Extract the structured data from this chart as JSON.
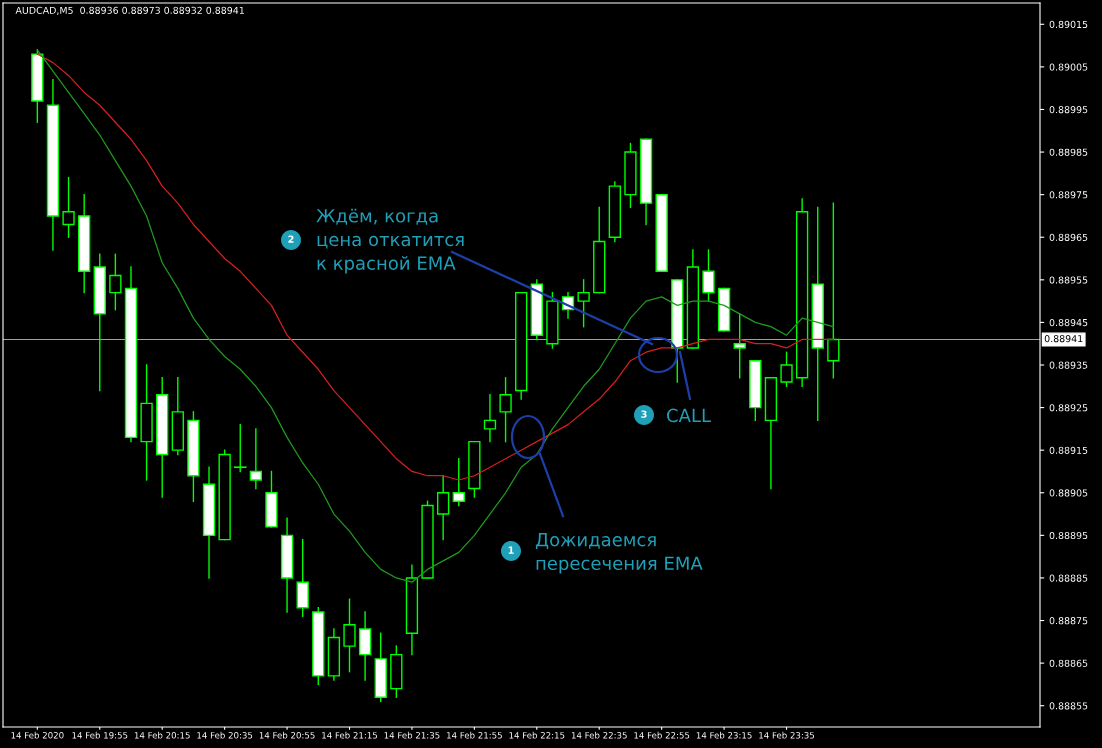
{
  "chart_data": {
    "type": "candlestick",
    "title": "AUDCAD,M5  0.88936 0.88973 0.88932 0.88941",
    "color": "#00ff00",
    "categories": [
      "14 Feb 2020",
      null,
      null,
      null,
      "14 Feb 19:55",
      null,
      null,
      null,
      "14 Feb 20:15",
      null,
      null,
      null,
      "14 Feb 20:35",
      null,
      null,
      null,
      "14 Feb 20:55",
      null,
      null,
      null,
      "14 Feb 21:15",
      null,
      null,
      null,
      "14 Feb 21:35",
      null,
      null,
      null,
      "14 Feb 21:55",
      null,
      null,
      null,
      "14 Feb 22:15",
      null,
      null,
      null,
      "14 Feb 22:35",
      null,
      null,
      null,
      "14 Feb 22:55",
      null,
      null,
      null,
      "14 Feb 23:15",
      null,
      null,
      null,
      "14 Feb 23:35",
      null,
      null,
      null
    ],
    "ohlc": [
      [
        0.89008,
        0.89009,
        0.88992,
        0.88997
      ],
      [
        0.88996,
        0.89002,
        0.88962,
        0.8897
      ],
      [
        0.88968,
        0.88979,
        0.88965,
        0.88971
      ],
      [
        0.8897,
        0.88975,
        0.88952,
        0.88957
      ],
      [
        0.88958,
        0.88961,
        0.88929,
        0.88947
      ],
      [
        0.88952,
        0.88961,
        0.88948,
        0.88956
      ],
      [
        0.88953,
        0.88958,
        0.88917,
        0.88918
      ],
      [
        0.88917,
        0.88935,
        0.88908,
        0.88926
      ],
      [
        0.88928,
        0.88932,
        0.88904,
        0.88914
      ],
      [
        0.88915,
        0.88932,
        0.88914,
        0.88924
      ],
      [
        0.88922,
        0.88924,
        0.88903,
        0.88909
      ],
      [
        0.88907,
        0.88911,
        0.88885,
        0.88895
      ],
      [
        0.88894,
        0.88915,
        0.88894,
        0.88914
      ],
      [
        0.88911,
        0.88921,
        0.8891,
        0.88911
      ],
      [
        0.8891,
        0.8892,
        0.88906,
        0.88908
      ],
      [
        0.88905,
        0.8891,
        0.88897,
        0.88897
      ],
      [
        0.88895,
        0.88899,
        0.88877,
        0.88885
      ],
      [
        0.88884,
        0.88894,
        0.88876,
        0.88878
      ],
      [
        0.88877,
        0.88878,
        0.8886,
        0.88862
      ],
      [
        0.88862,
        0.88873,
        0.88861,
        0.88871
      ],
      [
        0.88869,
        0.8888,
        0.88863,
        0.88874
      ],
      [
        0.88873,
        0.88877,
        0.88861,
        0.88867
      ],
      [
        0.88866,
        0.88872,
        0.88856,
        0.88857
      ],
      [
        0.88859,
        0.88869,
        0.88857,
        0.88867
      ],
      [
        0.88872,
        0.88888,
        0.88867,
        0.88885
      ],
      [
        0.88885,
        0.88903,
        0.88885,
        0.88902
      ],
      [
        0.889,
        0.88909,
        0.88894,
        0.88905
      ],
      [
        0.88905,
        0.88913,
        0.88902,
        0.88903
      ],
      [
        0.88906,
        0.88917,
        0.88904,
        0.88917
      ],
      [
        0.8892,
        0.88928,
        0.88917,
        0.88922
      ],
      [
        0.88924,
        0.88932,
        0.88917,
        0.88928
      ],
      [
        0.88929,
        0.88952,
        0.88927,
        0.88952
      ],
      [
        0.88954,
        0.88955,
        0.88941,
        0.88942
      ],
      [
        0.8894,
        0.88952,
        0.88939,
        0.8895
      ],
      [
        0.88951,
        0.88952,
        0.88946,
        0.88948
      ],
      [
        0.8895,
        0.88955,
        0.88944,
        0.88952
      ],
      [
        0.88952,
        0.88972,
        0.88952,
        0.88964
      ],
      [
        0.88965,
        0.88978,
        0.88964,
        0.88977
      ],
      [
        0.88975,
        0.88987,
        0.88972,
        0.88985
      ],
      [
        0.88988,
        0.88988,
        0.88968,
        0.88973
      ],
      [
        0.88975,
        0.88975,
        0.88957,
        0.88957
      ],
      [
        0.88955,
        0.88955,
        0.88931,
        0.88939
      ],
      [
        0.88939,
        0.88962,
        0.88939,
        0.88958
      ],
      [
        0.88957,
        0.88962,
        0.8895,
        0.88952
      ],
      [
        0.88953,
        0.88953,
        0.88943,
        0.88943
      ],
      [
        0.8894,
        0.88947,
        0.88932,
        0.88939
      ],
      [
        0.88936,
        0.88936,
        0.88922,
        0.88925
      ],
      [
        0.88922,
        0.88932,
        0.88906,
        0.88932
      ],
      [
        0.88931,
        0.88938,
        0.8893,
        0.88935
      ],
      [
        0.88932,
        0.88974,
        0.8893,
        0.88971
      ],
      [
        0.88954,
        0.88972,
        0.88922,
        0.88939
      ],
      [
        0.88936,
        0.88973,
        0.88932,
        0.88941
      ]
    ],
    "series": [
      {
        "type": "line",
        "color": "#d42020",
        "values": [
          0.89008,
          0.89006,
          0.89003,
          0.88999,
          0.88996,
          0.88992,
          0.88988,
          0.88983,
          0.88977,
          0.88973,
          0.88968,
          0.88964,
          0.8896,
          0.88957,
          0.88953,
          0.88949,
          0.88942,
          0.88938,
          0.88934,
          0.88929,
          0.88925,
          0.88921,
          0.88917,
          0.88913,
          0.8891,
          0.88909,
          0.88909,
          0.88908,
          0.88909,
          0.88911,
          0.88913,
          0.88915,
          0.88917,
          0.88919,
          0.88921,
          0.88924,
          0.88927,
          0.88931,
          0.88936,
          0.88938,
          0.88939,
          0.88939,
          0.8894,
          0.88941,
          0.88941,
          0.88941,
          0.8894,
          0.8894,
          0.88939,
          0.88941,
          0.88941,
          0.88941
        ]
      },
      {
        "type": "line",
        "color": "#1f9a1f",
        "values": [
          0.89009,
          0.89004,
          0.88999,
          0.88994,
          0.88989,
          0.88983,
          0.88977,
          0.8897,
          0.88959,
          0.88953,
          0.88946,
          0.88941,
          0.88937,
          0.88934,
          0.8893,
          0.88925,
          0.88918,
          0.88912,
          0.88907,
          0.889,
          0.88896,
          0.88891,
          0.88887,
          0.88885,
          0.88884,
          0.88887,
          0.88889,
          0.88891,
          0.88895,
          0.889,
          0.88905,
          0.88911,
          0.88914,
          0.8892,
          0.88925,
          0.8893,
          0.88934,
          0.8894,
          0.88946,
          0.8895,
          0.88951,
          0.88949,
          0.8895,
          0.8895,
          0.88949,
          0.88947,
          0.88945,
          0.88944,
          0.88942,
          0.88946,
          0.88945,
          0.88944
        ]
      }
    ],
    "ylim": [
      0.8885,
      0.8902
    ],
    "yticks": [
      0.88855,
      0.88865,
      0.88875,
      0.88885,
      0.88895,
      0.88905,
      0.88915,
      0.88925,
      0.88935,
      0.88945,
      0.88955,
      0.88965,
      0.88975,
      0.88985,
      0.88995,
      0.89005,
      0.89015
    ],
    "ref_lines": [
      {
        "axis": "y",
        "value": 0.88941,
        "label": "0.88941",
        "color": "#a0a0a0"
      }
    ],
    "annotations": [
      "1",
      "Дожидаемся\nпересечения EMA",
      "2",
      "Ждём, когда\nцена откатится\nк красной EMA",
      "3",
      "CALL"
    ]
  }
}
